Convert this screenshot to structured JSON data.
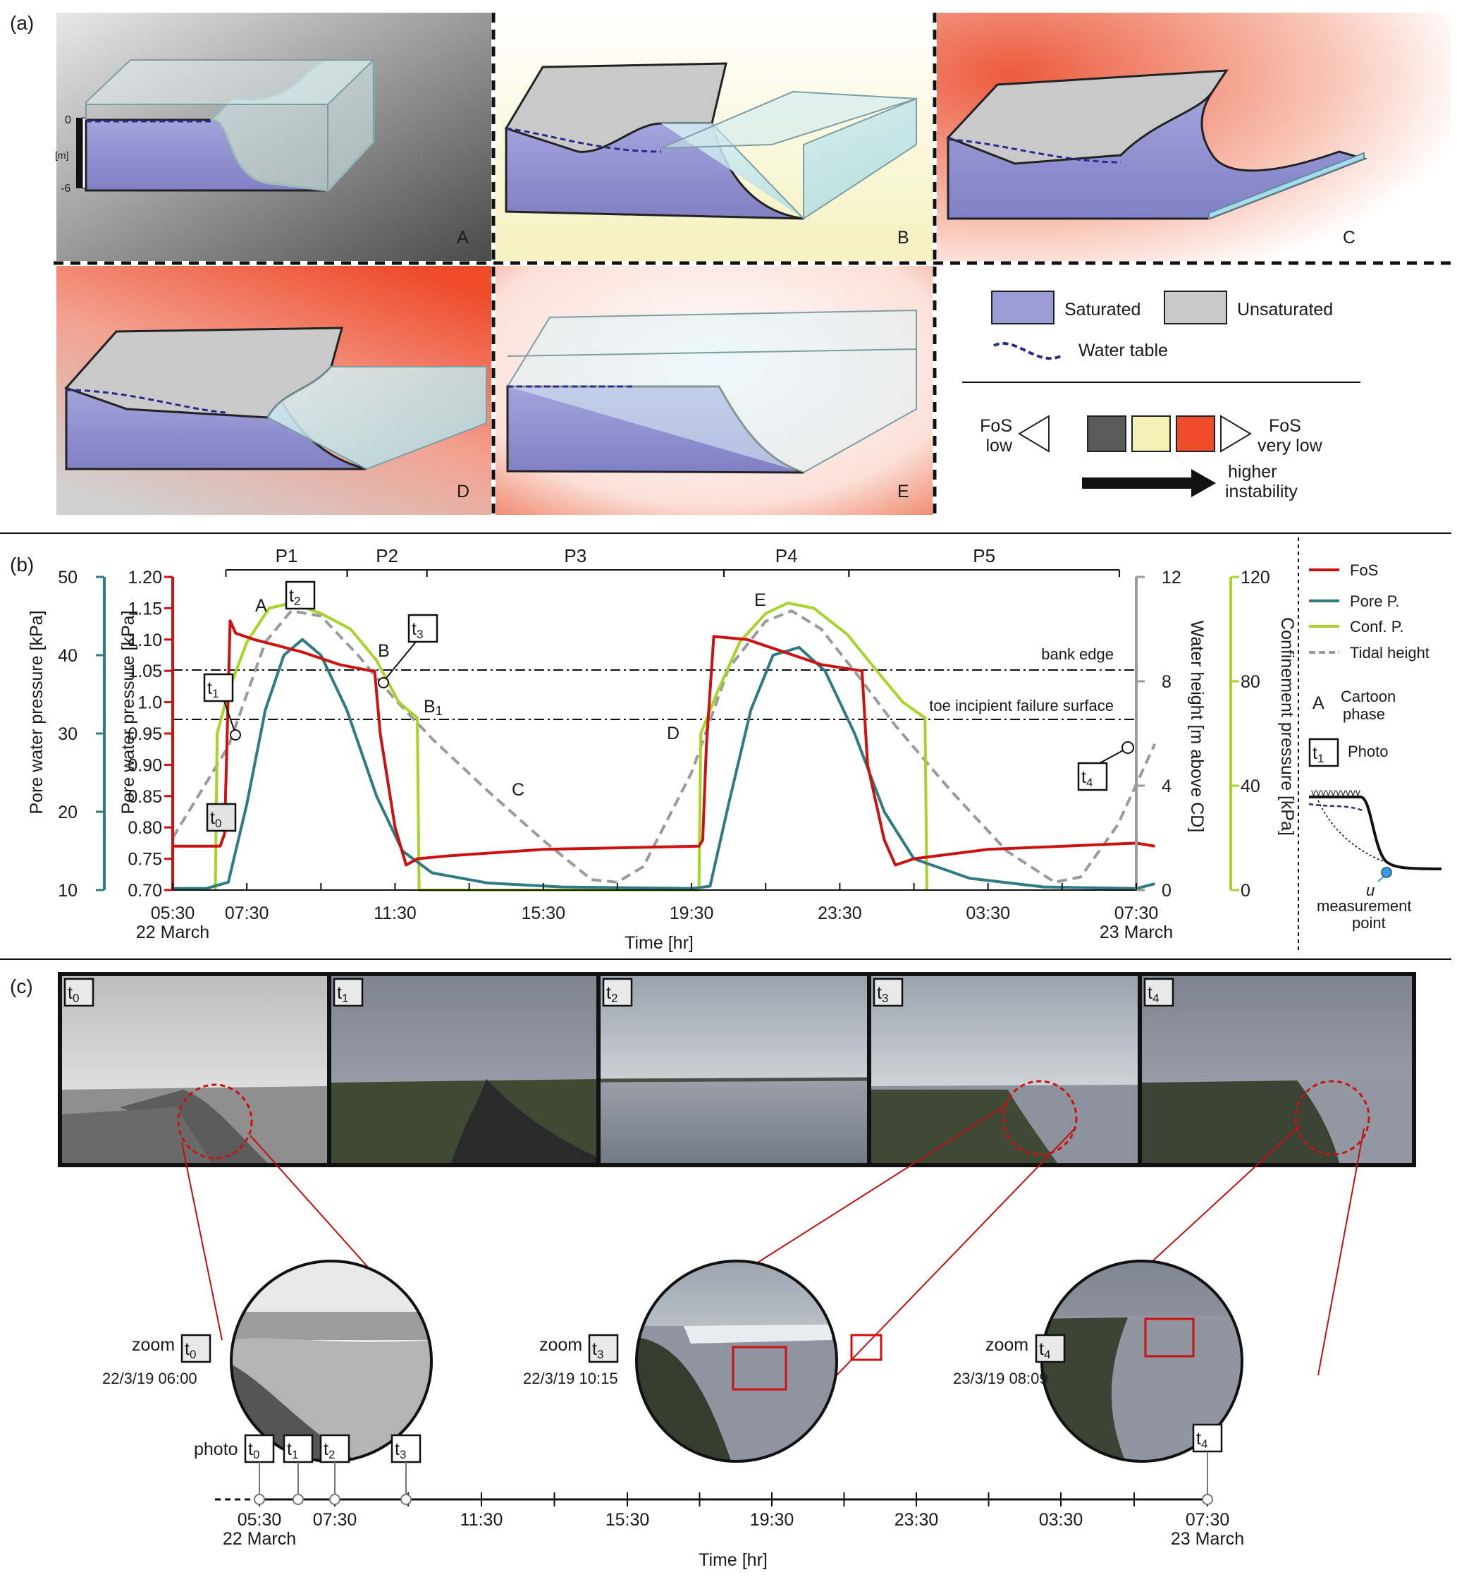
{
  "panel_labels": {
    "a": "(a)",
    "b": "(b)",
    "c": "(c)"
  },
  "panel_a": {
    "cartoons": [
      {
        "letter": "A",
        "bg": "gray"
      },
      {
        "letter": "B",
        "bg": "yellow"
      },
      {
        "letter": "C",
        "bg": "red"
      },
      {
        "letter": "D",
        "bg": "red"
      },
      {
        "letter": "E",
        "bg": "red"
      }
    ],
    "depth_scale": {
      "top": "0",
      "unit": "[m]",
      "bottom": "-6"
    },
    "legend": {
      "saturated": "Saturated",
      "unsaturated": "Unsaturated",
      "water_table": "Water table",
      "fos_low": "FoS\nlow",
      "fos_very_low": "FoS\nvery low",
      "instability": "higher\ninstability"
    },
    "colors": {
      "saturated": "#9b9bd6",
      "unsaturated": "#c9c9c9",
      "water_table": "#2b2b8f",
      "fos_gray": "#5a5a5a",
      "fos_yellow": "#f3f0b5",
      "fos_red": "#ee4b2b"
    }
  },
  "chart_data": {
    "type": "line",
    "x_unit": "Time [hr]",
    "x_ticks": [
      "05:30\n22 March",
      "07:30",
      "11:30",
      "15:30",
      "19:30",
      "23:30",
      "03:30",
      "07:30\n23 March"
    ],
    "xlabel": "Time [hr]",
    "axes": {
      "pore_kpa": {
        "label": "Pore water pressure [kPa]",
        "range": [
          10,
          50
        ],
        "ticks": [
          "10",
          "20",
          "30",
          "40",
          "50"
        ],
        "color": "#2e7b84"
      },
      "fos": {
        "label": "Pore water pressure [kPa]",
        "range": [
          0.7,
          1.2
        ],
        "ticks": [
          "0.70",
          "0.75",
          "0.80",
          "0.85",
          "0.90",
          "0.95",
          "1.0",
          "1.05",
          "1.10",
          "1.15",
          "1.20"
        ],
        "color": "#d01010"
      },
      "water_height": {
        "label": "Water height [m above CD]",
        "range": [
          0,
          12
        ],
        "ticks": [
          "0",
          "4",
          "8",
          "12"
        ],
        "color": "#9a9a9a"
      },
      "confinement": {
        "label": "Confinement pressure [kPa]",
        "range": [
          0,
          120
        ],
        "ticks": [
          "0",
          "40",
          "80",
          "120"
        ],
        "color": "#a6d42a"
      }
    },
    "phases": [
      "P1",
      "P2",
      "P3",
      "P4",
      "P5"
    ],
    "reference_lines": {
      "bank_edge": "bank edge",
      "toe": "toe incipient failure surface"
    },
    "series": [
      {
        "name": "FoS",
        "color": "#cc1111",
        "x": [
          0,
          1.15,
          1.28,
          1.4,
          1.55,
          1.7,
          2.2,
          3.5,
          4.5,
          5.35,
          5.45,
          5.6,
          6,
          6.3,
          6.6,
          7.5,
          10,
          14.2,
          14.3,
          14.4,
          14.6,
          15.5,
          17.5,
          18.6,
          18.75,
          19.2,
          19.5,
          20,
          22,
          26,
          26.5
        ],
        "y": [
          0.77,
          0.77,
          0.77,
          0.79,
          1.13,
          1.11,
          1.1,
          1.08,
          1.06,
          1.05,
          1.05,
          0.95,
          0.8,
          0.74,
          0.75,
          0.755,
          0.765,
          0.77,
          0.78,
          0.93,
          1.105,
          1.1,
          1.06,
          1.05,
          0.9,
          0.78,
          0.74,
          0.75,
          0.765,
          0.775,
          0.77
        ]
      },
      {
        "name": "Pore P.",
        "color": "#2e7b84",
        "x": [
          0,
          0.9,
          1.5,
          2.0,
          2.5,
          3.0,
          3.5,
          4.0,
          4.7,
          5.5,
          6.2,
          7.0,
          8.5,
          10.5,
          14.0,
          14.5,
          15.0,
          15.6,
          16.2,
          16.9,
          17.6,
          18.4,
          19.2,
          20.0,
          21.5,
          23.5,
          26.0,
          26.5
        ],
        "y": [
          10.2,
          10.2,
          11.0,
          21.0,
          33.0,
          40.0,
          42.0,
          40.0,
          33.0,
          22.0,
          15.0,
          12.2,
          10.9,
          10.4,
          10.2,
          10.5,
          21.0,
          33.0,
          40.0,
          41.0,
          38.0,
          30.0,
          20.0,
          14.0,
          11.5,
          10.4,
          10.2,
          10.8
        ]
      },
      {
        "name": "Conf. P.",
        "color": "#a6d42a",
        "x": [
          1.15,
          1.2,
          1.5,
          2.0,
          2.6,
          3.2,
          4.0,
          4.8,
          5.5,
          6.1,
          6.6,
          6.65,
          14.2,
          14.25,
          14.7,
          15.3,
          16.0,
          16.6,
          17.3,
          18.2,
          19.0,
          19.7,
          20.3,
          20.35
        ],
        "y": [
          0,
          60,
          76,
          95,
          108,
          110,
          106,
          100,
          88,
          72,
          66,
          0,
          0,
          60,
          76,
          95,
          106,
          110,
          108,
          98,
          84,
          72,
          66,
          0
        ]
      },
      {
        "name": "Tidal height",
        "color": "#9a9a9a",
        "x": [
          0,
          1.5,
          2.5,
          3.2,
          4.0,
          5.0,
          6.0,
          7.0,
          8.5,
          10.0,
          11.3,
          12.0,
          12.7,
          14.0,
          15.0,
          16.0,
          16.7,
          17.5,
          18.5,
          19.5,
          21.0,
          22.5,
          23.8,
          24.5,
          25.5,
          26.5
        ],
        "y": [
          2.0,
          5.5,
          9.5,
          10.7,
          10.5,
          9.0,
          7.3,
          5.8,
          3.8,
          1.9,
          0.4,
          0.3,
          0.9,
          4.5,
          8.5,
          10.3,
          10.7,
          10.0,
          8.2,
          6.3,
          3.8,
          1.5,
          0.3,
          0.5,
          2.5,
          5.6
        ]
      }
    ],
    "annotations": [
      "A",
      "B",
      "B1",
      "C",
      "D",
      "E"
    ],
    "photo_markers": [
      "t0",
      "t1",
      "t2",
      "t3",
      "t4"
    ],
    "legend": [
      "FoS",
      "Pore P.",
      "Conf. P.",
      "Tidal height"
    ],
    "legend_extra": {
      "cartoon_letter": "A",
      "cartoon_text": "Cartoon\nphase",
      "photo_text": "Photo",
      "u_label": "u",
      "measurement": "measurement\npoint"
    }
  },
  "panel_c": {
    "frames": [
      "t0",
      "t1",
      "t2",
      "t3",
      "t4"
    ],
    "zooms": [
      {
        "tag": "t0",
        "label": "zoom",
        "datetime": "22/3/19   06:00"
      },
      {
        "tag": "t3",
        "label": "zoom",
        "datetime": "22/3/19   10:15"
      },
      {
        "tag": "t4",
        "label": "zoom",
        "datetime": "23/3/19   08:09"
      }
    ],
    "timeline": {
      "label": "photo",
      "ticks": [
        "05:30\n22 March",
        "07:30",
        "11:30",
        "15:30",
        "19:30",
        "23:30",
        "03:30",
        "07:30\n23 March"
      ],
      "xlabel": "Time [hr]",
      "photos": [
        "t0",
        "t1",
        "t2",
        "t3",
        "t4"
      ]
    }
  }
}
